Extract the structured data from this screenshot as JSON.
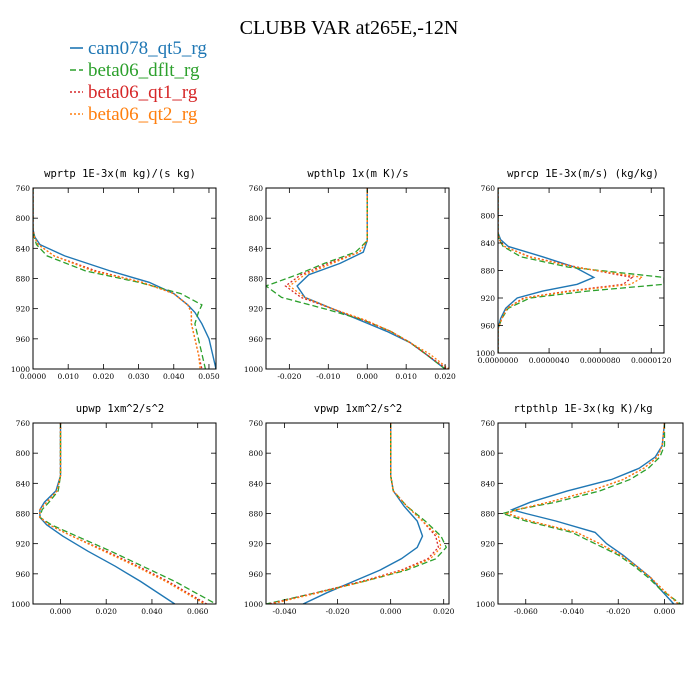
{
  "title": "CLUBB VAR at265E,-12N",
  "legend": [
    {
      "name": "cam078_qt5_rg",
      "color": "#1f77b4",
      "dash": ""
    },
    {
      "name": "beta06_dflt_rg",
      "color": "#2ca02c",
      "dash": "6,3"
    },
    {
      "name": "beta06_qt1_rg",
      "color": "#d62728",
      "dash": "2,2"
    },
    {
      "name": "beta06_qt2_rg",
      "color": "#ff7f0e",
      "dash": "2,2"
    }
  ],
  "chart_data": [
    {
      "type": "line",
      "title": "wprtp  1E-3x(m kg)/(s kg)",
      "xlim": [
        0,
        0.052
      ],
      "ylim": [
        760,
        1000
      ],
      "xticks": [
        "0.0000",
        "0.010",
        "0.020",
        "0.030",
        "0.040",
        "0.050"
      ],
      "xtick_values": [
        0,
        0.01,
        0.02,
        0.03,
        0.04,
        0.05
      ],
      "yticks": [
        "760",
        "800",
        "840",
        "880",
        "920",
        "960",
        "1000"
      ],
      "y": [
        760,
        800,
        815,
        825,
        835,
        850,
        870,
        885,
        900,
        915,
        925,
        940,
        960,
        980,
        1000
      ],
      "series": [
        {
          "name": "cam078_qt5_rg",
          "values": [
            0,
            0,
            0,
            0.0005,
            0.002,
            0.009,
            0.022,
            0.033,
            0.04,
            0.044,
            0.046,
            0.048,
            0.05,
            0.051,
            0.052
          ]
        },
        {
          "name": "beta06_dflt_rg",
          "values": [
            0,
            0,
            0,
            0.0003,
            0.001,
            0.004,
            0.015,
            0.03,
            0.042,
            0.048,
            0.047,
            0.046,
            0.047,
            0.048,
            0.049
          ]
        },
        {
          "name": "beta06_qt1_rg",
          "values": [
            0,
            0,
            0,
            0.0004,
            0.0015,
            0.006,
            0.018,
            0.031,
            0.04,
            0.044,
            0.045,
            0.045,
            0.046,
            0.047,
            0.048
          ]
        },
        {
          "name": "beta06_qt2_rg",
          "values": [
            0,
            0,
            0,
            0.0004,
            0.0015,
            0.006,
            0.017,
            0.031,
            0.04,
            0.044,
            0.045,
            0.045,
            0.046,
            0.047,
            0.0475
          ]
        }
      ]
    },
    {
      "type": "line",
      "title": "wpthlp  1x(m K)/s",
      "xlim": [
        -0.026,
        0.021
      ],
      "ylim": [
        760,
        1000
      ],
      "xticks": [
        "-0.020",
        "-0.010",
        "0.000",
        "0.010",
        "0.020"
      ],
      "xtick_values": [
        -0.02,
        -0.01,
        0,
        0.01,
        0.02
      ],
      "yticks": [
        "760",
        "800",
        "840",
        "880",
        "920",
        "960",
        "1000"
      ],
      "y": [
        760,
        800,
        830,
        845,
        860,
        875,
        890,
        905,
        920,
        935,
        950,
        965,
        980,
        1000
      ],
      "series": [
        {
          "name": "cam078_qt5_rg",
          "values": [
            0,
            0,
            0,
            -0.001,
            -0.007,
            -0.015,
            -0.018,
            -0.016,
            -0.009,
            -0.002,
            0.005,
            0.011,
            0.015,
            0.02
          ]
        },
        {
          "name": "beta06_dflt_rg",
          "values": [
            0,
            0,
            0,
            -0.003,
            -0.011,
            -0.018,
            -0.026,
            -0.022,
            -0.011,
            -0.001,
            0.006,
            0.011,
            0.015,
            0.02
          ]
        },
        {
          "name": "beta06_qt1_rg",
          "values": [
            0,
            0,
            0,
            -0.002,
            -0.01,
            -0.017,
            -0.021,
            -0.017,
            -0.009,
            -0.001,
            0.006,
            0.011,
            0.015,
            0.0205
          ]
        },
        {
          "name": "beta06_qt2_rg",
          "values": [
            0,
            0,
            0,
            -0.002,
            -0.009,
            -0.016,
            -0.02,
            -0.016,
            -0.009,
            -0.0005,
            0.006,
            0.011,
            0.016,
            0.021
          ]
        }
      ]
    },
    {
      "type": "line",
      "title": "wprcp  1E-3x(m/s) (kg/kg)",
      "xlim": [
        0,
        1.3e-05
      ],
      "ylim": [
        760,
        1000
      ],
      "xticks": [
        "0.0000000",
        "0.0000040",
        "0.0000080",
        "0.0000120"
      ],
      "xtick_values": [
        0,
        4e-06,
        8e-06,
        1.2e-05
      ],
      "yticks": [
        "760",
        "800",
        "840",
        "880",
        "920",
        "960",
        "1000"
      ],
      "y": [
        760,
        800,
        825,
        835,
        845,
        860,
        875,
        890,
        900,
        910,
        920,
        935,
        950,
        965,
        1000
      ],
      "series": [
        {
          "name": "cam078_qt5_rg",
          "values": [
            0,
            0,
            0,
            2e-07,
            8e-07,
            3.5e-06,
            6e-06,
            7.5e-06,
            6.2e-06,
            3.5e-06,
            1.5e-06,
            6e-07,
            2e-07,
            0,
            0
          ]
        },
        {
          "name": "beta06_dflt_rg",
          "values": [
            0,
            0,
            0,
            1e-07,
            4e-07,
            1.8e-06,
            5.5e-06,
            1.3e-05,
            1.3e-05,
            7e-06,
            2.5e-06,
            8e-07,
            3e-07,
            0,
            0
          ]
        },
        {
          "name": "beta06_qt1_rg",
          "values": [
            0,
            0,
            0,
            1e-07,
            5e-07,
            2.5e-06,
            6.2e-06,
            1.05e-05,
            9.8e-06,
            5.5e-06,
            2e-06,
            7e-07,
            3e-07,
            0,
            0
          ]
        },
        {
          "name": "beta06_qt2_rg",
          "values": [
            0,
            0,
            0,
            1e-07,
            5e-07,
            2.4e-06,
            6e-06,
            1.13e-05,
            1.04e-05,
            5.8e-06,
            2.1e-06,
            7e-07,
            3e-07,
            0,
            0
          ]
        }
      ]
    },
    {
      "type": "line",
      "title": "upwp  1xm^2/s^2",
      "xlim": [
        -0.012,
        0.068
      ],
      "ylim": [
        760,
        1000
      ],
      "xticks": [
        "0.000",
        "0.020",
        "0.040",
        "0.060"
      ],
      "xtick_values": [
        0,
        0.02,
        0.04,
        0.06
      ],
      "yticks": [
        "760",
        "800",
        "840",
        "880",
        "920",
        "960",
        "1000"
      ],
      "y": [
        760,
        800,
        830,
        850,
        865,
        875,
        885,
        895,
        910,
        930,
        950,
        970,
        1000
      ],
      "series": [
        {
          "name": "cam078_qt5_rg",
          "values": [
            0,
            0,
            0,
            -0.002,
            -0.007,
            -0.009,
            -0.009,
            -0.006,
            0.001,
            0.012,
            0.024,
            0.035,
            0.05
          ]
        },
        {
          "name": "beta06_dflt_rg",
          "values": [
            0,
            0,
            0,
            -0.001,
            -0.005,
            -0.008,
            -0.009,
            -0.004,
            0.007,
            0.022,
            0.036,
            0.05,
            0.068
          ]
        },
        {
          "name": "beta06_qt1_rg",
          "values": [
            0,
            0,
            0,
            -0.0015,
            -0.006,
            -0.009,
            -0.009,
            -0.005,
            0.005,
            0.02,
            0.034,
            0.047,
            0.064
          ]
        },
        {
          "name": "beta06_qt2_rg",
          "values": [
            0,
            0,
            0,
            -0.0015,
            -0.006,
            -0.009,
            -0.009,
            -0.005,
            0.005,
            0.019,
            0.033,
            0.046,
            0.063
          ]
        }
      ]
    },
    {
      "type": "line",
      "title": "vpwp  1xm^2/s^2",
      "xlim": [
        -0.047,
        0.022
      ],
      "ylim": [
        760,
        1000
      ],
      "xticks": [
        "-0.040",
        "-0.020",
        "0.000",
        "0.020"
      ],
      "xtick_values": [
        -0.04,
        -0.02,
        0,
        0.02
      ],
      "yticks": [
        "760",
        "800",
        "840",
        "880",
        "920",
        "960",
        "1000"
      ],
      "y": [
        760,
        800,
        830,
        850,
        870,
        890,
        910,
        925,
        940,
        955,
        970,
        985,
        1000
      ],
      "series": [
        {
          "name": "cam078_qt5_rg",
          "values": [
            0,
            0,
            0,
            0.001,
            0.005,
            0.01,
            0.012,
            0.01,
            0.004,
            -0.004,
            -0.014,
            -0.024,
            -0.033
          ]
        },
        {
          "name": "beta06_dflt_rg",
          "values": [
            0,
            0,
            0,
            0.001,
            0.006,
            0.013,
            0.019,
            0.021,
            0.017,
            0.006,
            -0.01,
            -0.028,
            -0.047
          ]
        },
        {
          "name": "beta06_qt1_rg",
          "values": [
            0,
            0,
            0,
            0.001,
            0.006,
            0.012,
            0.017,
            0.018,
            0.014,
            0.004,
            -0.011,
            -0.028,
            -0.046
          ]
        },
        {
          "name": "beta06_qt2_rg",
          "values": [
            0,
            0,
            0,
            0.001,
            0.006,
            0.012,
            0.018,
            0.019,
            0.015,
            0.005,
            -0.01,
            -0.027,
            -0.045
          ]
        }
      ]
    },
    {
      "type": "line",
      "title": "rtpthlp  1E-3x(kg K)/kg",
      "xlim": [
        -0.072,
        0.008
      ],
      "ylim": [
        760,
        1000
      ],
      "xticks": [
        "-0.060",
        "-0.040",
        "-0.020",
        "0.000"
      ],
      "xtick_values": [
        -0.06,
        -0.04,
        -0.02,
        0
      ],
      "yticks": [
        "760",
        "800",
        "840",
        "880",
        "920",
        "960",
        "1000"
      ],
      "y": [
        760,
        790,
        805,
        820,
        835,
        850,
        865,
        875,
        880,
        890,
        905,
        920,
        935,
        950,
        965,
        980,
        1000
      ],
      "series": [
        {
          "name": "cam078_qt5_rg",
          "values": [
            0,
            -0.001,
            -0.004,
            -0.011,
            -0.023,
            -0.042,
            -0.058,
            -0.066,
            -0.06,
            -0.047,
            -0.03,
            -0.025,
            -0.018,
            -0.012,
            -0.006,
            -0.002,
            0.004
          ]
        },
        {
          "name": "beta06_dflt_rg",
          "values": [
            0,
            0,
            -0.002,
            -0.007,
            -0.015,
            -0.028,
            -0.047,
            -0.064,
            -0.07,
            -0.06,
            -0.04,
            -0.03,
            -0.02,
            -0.013,
            -0.007,
            -0.002,
            0.007
          ]
        },
        {
          "name": "beta06_qt1_rg",
          "values": [
            0,
            -0.001,
            -0.003,
            -0.009,
            -0.018,
            -0.032,
            -0.05,
            -0.064,
            -0.068,
            -0.058,
            -0.038,
            -0.028,
            -0.019,
            -0.012,
            -0.006,
            -0.001,
            0.006
          ]
        },
        {
          "name": "beta06_qt2_rg",
          "values": [
            0,
            -0.001,
            -0.003,
            -0.009,
            -0.018,
            -0.032,
            -0.05,
            -0.064,
            -0.068,
            -0.058,
            -0.038,
            -0.028,
            -0.019,
            -0.012,
            -0.006,
            -0.001,
            0.006
          ]
        }
      ]
    }
  ]
}
